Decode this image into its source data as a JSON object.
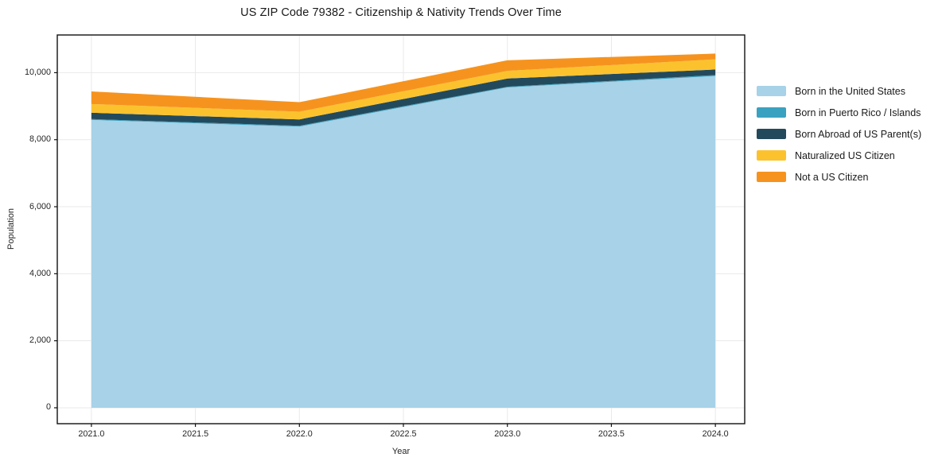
{
  "chart": {
    "title": "US ZIP Code 79382 - Citizenship & Nativity Trends Over Time",
    "xlabel": "Year",
    "ylabel": "Population"
  },
  "chart_data": {
    "type": "area",
    "stacked": true,
    "title": "US ZIP Code 79382 - Citizenship & Nativity Trends Over Time",
    "xlabel": "Year",
    "ylabel": "Population",
    "grid": true,
    "legend_position": "right-outside",
    "x": [
      2021,
      2022,
      2023,
      2024
    ],
    "series": [
      {
        "name": "Born in the United States",
        "color": "#a7d2e8",
        "values": [
          8590,
          8390,
          9560,
          9900
        ]
      },
      {
        "name": "Born in Puerto Rico / Islands",
        "color": "#3aa2c0",
        "values": [
          25,
          25,
          20,
          30
        ]
      },
      {
        "name": "Born Abroad of US Parent(s)",
        "color": "#234a5c",
        "values": [
          190,
          190,
          245,
          165
        ]
      },
      {
        "name": "Naturalized US Citizen",
        "color": "#fcc22e",
        "values": [
          260,
          230,
          230,
          305
        ]
      },
      {
        "name": "Not a US Citizen",
        "color": "#f6931e",
        "values": [
          375,
          285,
          315,
          170
        ]
      }
    ],
    "totals": [
      9440,
      9120,
      10370,
      10570
    ],
    "x_ticks": {
      "values": [
        2021.0,
        2021.5,
        2022.0,
        2022.5,
        2023.0,
        2023.5,
        2024.0
      ],
      "labels": [
        "2021.0",
        "2021.5",
        "2022.0",
        "2022.5",
        "2023.0",
        "2023.5",
        "2024.0"
      ]
    },
    "y_ticks": {
      "values": [
        0,
        2000,
        4000,
        6000,
        8000,
        10000
      ],
      "labels": [
        "0",
        "2,000",
        "4,000",
        "6,000",
        "8,000",
        "10,000"
      ]
    },
    "xlim": [
      2020.836,
      2024.141
    ],
    "ylim": [
      -475,
      11125
    ]
  },
  "colors": {
    "background": "#ffffff",
    "grid": "#e9e9e9",
    "spine": "#111111",
    "tick": "#111111",
    "text": "#262626"
  }
}
